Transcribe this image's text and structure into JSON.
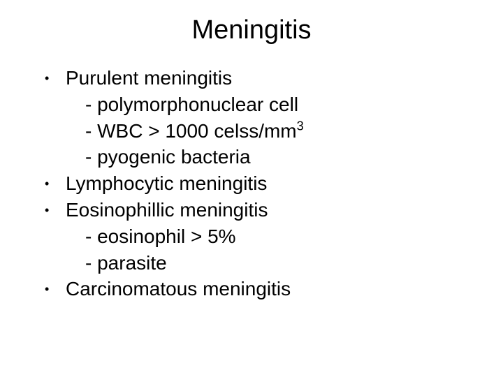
{
  "title": "Meningitis",
  "bullets": {
    "b1": "Purulent meningitis",
    "b1s1": "- polymorphonuclear cell",
    "b1s2_pre": "- WBC > 1000 celss/mm",
    "b1s2_sup": "3",
    "b1s3": "- pyogenic bacteria",
    "b2": "Lymphocytic meningitis",
    "b3": "Eosinophillic meningitis",
    "b3s1": "- eosinophil > 5%",
    "b3s2": "- parasite",
    "b4": "Carcinomatous meningitis"
  },
  "colors": {
    "background": "#ffffff",
    "text": "#000000"
  },
  "typography": {
    "title_fontsize": 38,
    "body_fontsize": 28,
    "font_family": "Arial"
  }
}
